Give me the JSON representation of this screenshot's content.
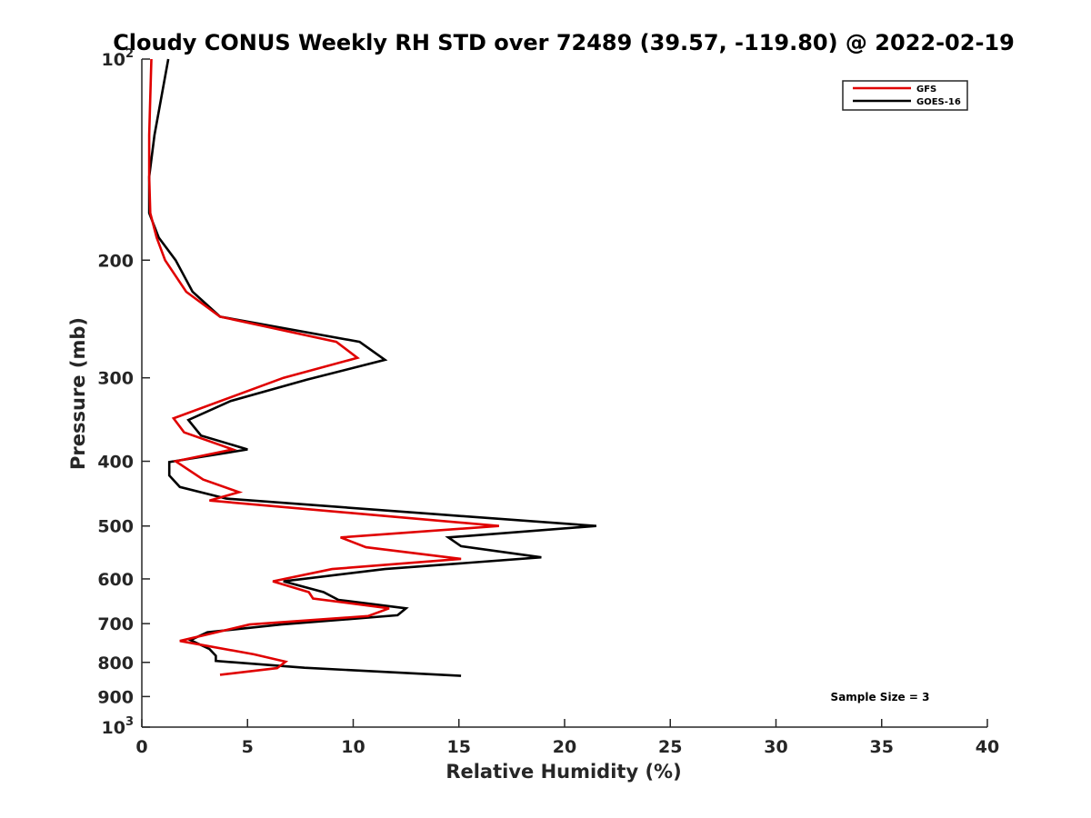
{
  "chart_data": {
    "type": "line",
    "title": "Cloudy CONUS Weekly RH STD over 72489 (39.57, -119.80) @ 2022-02-19",
    "xlabel": "Relative Humidity (%)",
    "ylabel": "Pressure (mb)",
    "xlim": [
      0,
      40
    ],
    "ylim": [
      100,
      1000
    ],
    "y_scale": "log",
    "y_reversed": true,
    "x_ticks": [
      0,
      5,
      10,
      15,
      20,
      25,
      30,
      35,
      40
    ],
    "y_ticks": [
      {
        "value": 100,
        "base": "10",
        "exp": "2"
      },
      {
        "value": 200,
        "label": "200"
      },
      {
        "value": 300,
        "label": "300"
      },
      {
        "value": 400,
        "label": "400"
      },
      {
        "value": 500,
        "label": "500"
      },
      {
        "value": 600,
        "label": "600"
      },
      {
        "value": 700,
        "label": "700"
      },
      {
        "value": 800,
        "label": "800"
      },
      {
        "value": 900,
        "label": "900"
      },
      {
        "value": 1000,
        "base": "10",
        "exp": "3"
      }
    ],
    "grid": false,
    "legend_position": "top-right",
    "annotation": "Sample Size = 3",
    "series": [
      {
        "name": "GFS",
        "color": "#e00000",
        "points": [
          [
            0.45,
            100
          ],
          [
            0.35,
            130
          ],
          [
            0.35,
            150
          ],
          [
            0.4,
            170
          ],
          [
            0.7,
            185
          ],
          [
            1.1,
            200
          ],
          [
            2.1,
            223
          ],
          [
            3.7,
            243
          ],
          [
            9.2,
            265
          ],
          [
            10.2,
            280
          ],
          [
            6.7,
            300
          ],
          [
            1.5,
            345
          ],
          [
            2.0,
            362
          ],
          [
            4.3,
            384
          ],
          [
            1.6,
            400
          ],
          [
            2.9,
            426
          ],
          [
            4.6,
            445
          ],
          [
            3.2,
            458
          ],
          [
            11.5,
            483
          ],
          [
            16.9,
            500
          ],
          [
            9.4,
            520
          ],
          [
            10.6,
            538
          ],
          [
            15.1,
            560
          ],
          [
            9.0,
            580
          ],
          [
            6.2,
            605
          ],
          [
            7.9,
            628
          ],
          [
            8.1,
            642
          ],
          [
            11.7,
            664
          ],
          [
            10.7,
            682
          ],
          [
            5.1,
            702
          ],
          [
            1.8,
            743
          ],
          [
            5.3,
            778
          ],
          [
            6.8,
            798
          ],
          [
            6.4,
            816
          ],
          [
            3.7,
            835
          ]
        ]
      },
      {
        "name": "GOES-16",
        "color": "#000000",
        "points": [
          [
            1.25,
            100
          ],
          [
            0.6,
            130
          ],
          [
            0.35,
            150
          ],
          [
            0.35,
            170
          ],
          [
            0.8,
            185
          ],
          [
            1.6,
            200
          ],
          [
            2.4,
            223
          ],
          [
            3.7,
            243
          ],
          [
            10.3,
            265
          ],
          [
            11.5,
            282
          ],
          [
            7.8,
            302
          ],
          [
            4.2,
            325
          ],
          [
            2.2,
            347
          ],
          [
            2.8,
            366
          ],
          [
            5.0,
            384
          ],
          [
            1.3,
            401
          ],
          [
            1.3,
            420
          ],
          [
            1.8,
            437
          ],
          [
            4.0,
            455
          ],
          [
            13.9,
            480
          ],
          [
            21.5,
            500
          ],
          [
            14.5,
            520
          ],
          [
            15.1,
            536
          ],
          [
            18.9,
            557
          ],
          [
            11.5,
            580
          ],
          [
            6.7,
            605
          ],
          [
            8.6,
            628
          ],
          [
            9.3,
            645
          ],
          [
            12.5,
            664
          ],
          [
            12.1,
            680
          ],
          [
            6.6,
            702
          ],
          [
            3.1,
            721
          ],
          [
            2.3,
            741
          ],
          [
            3.2,
            764
          ],
          [
            3.5,
            782
          ],
          [
            3.5,
            796
          ],
          [
            7.7,
            815
          ],
          [
            15.1,
            838
          ]
        ]
      }
    ]
  }
}
